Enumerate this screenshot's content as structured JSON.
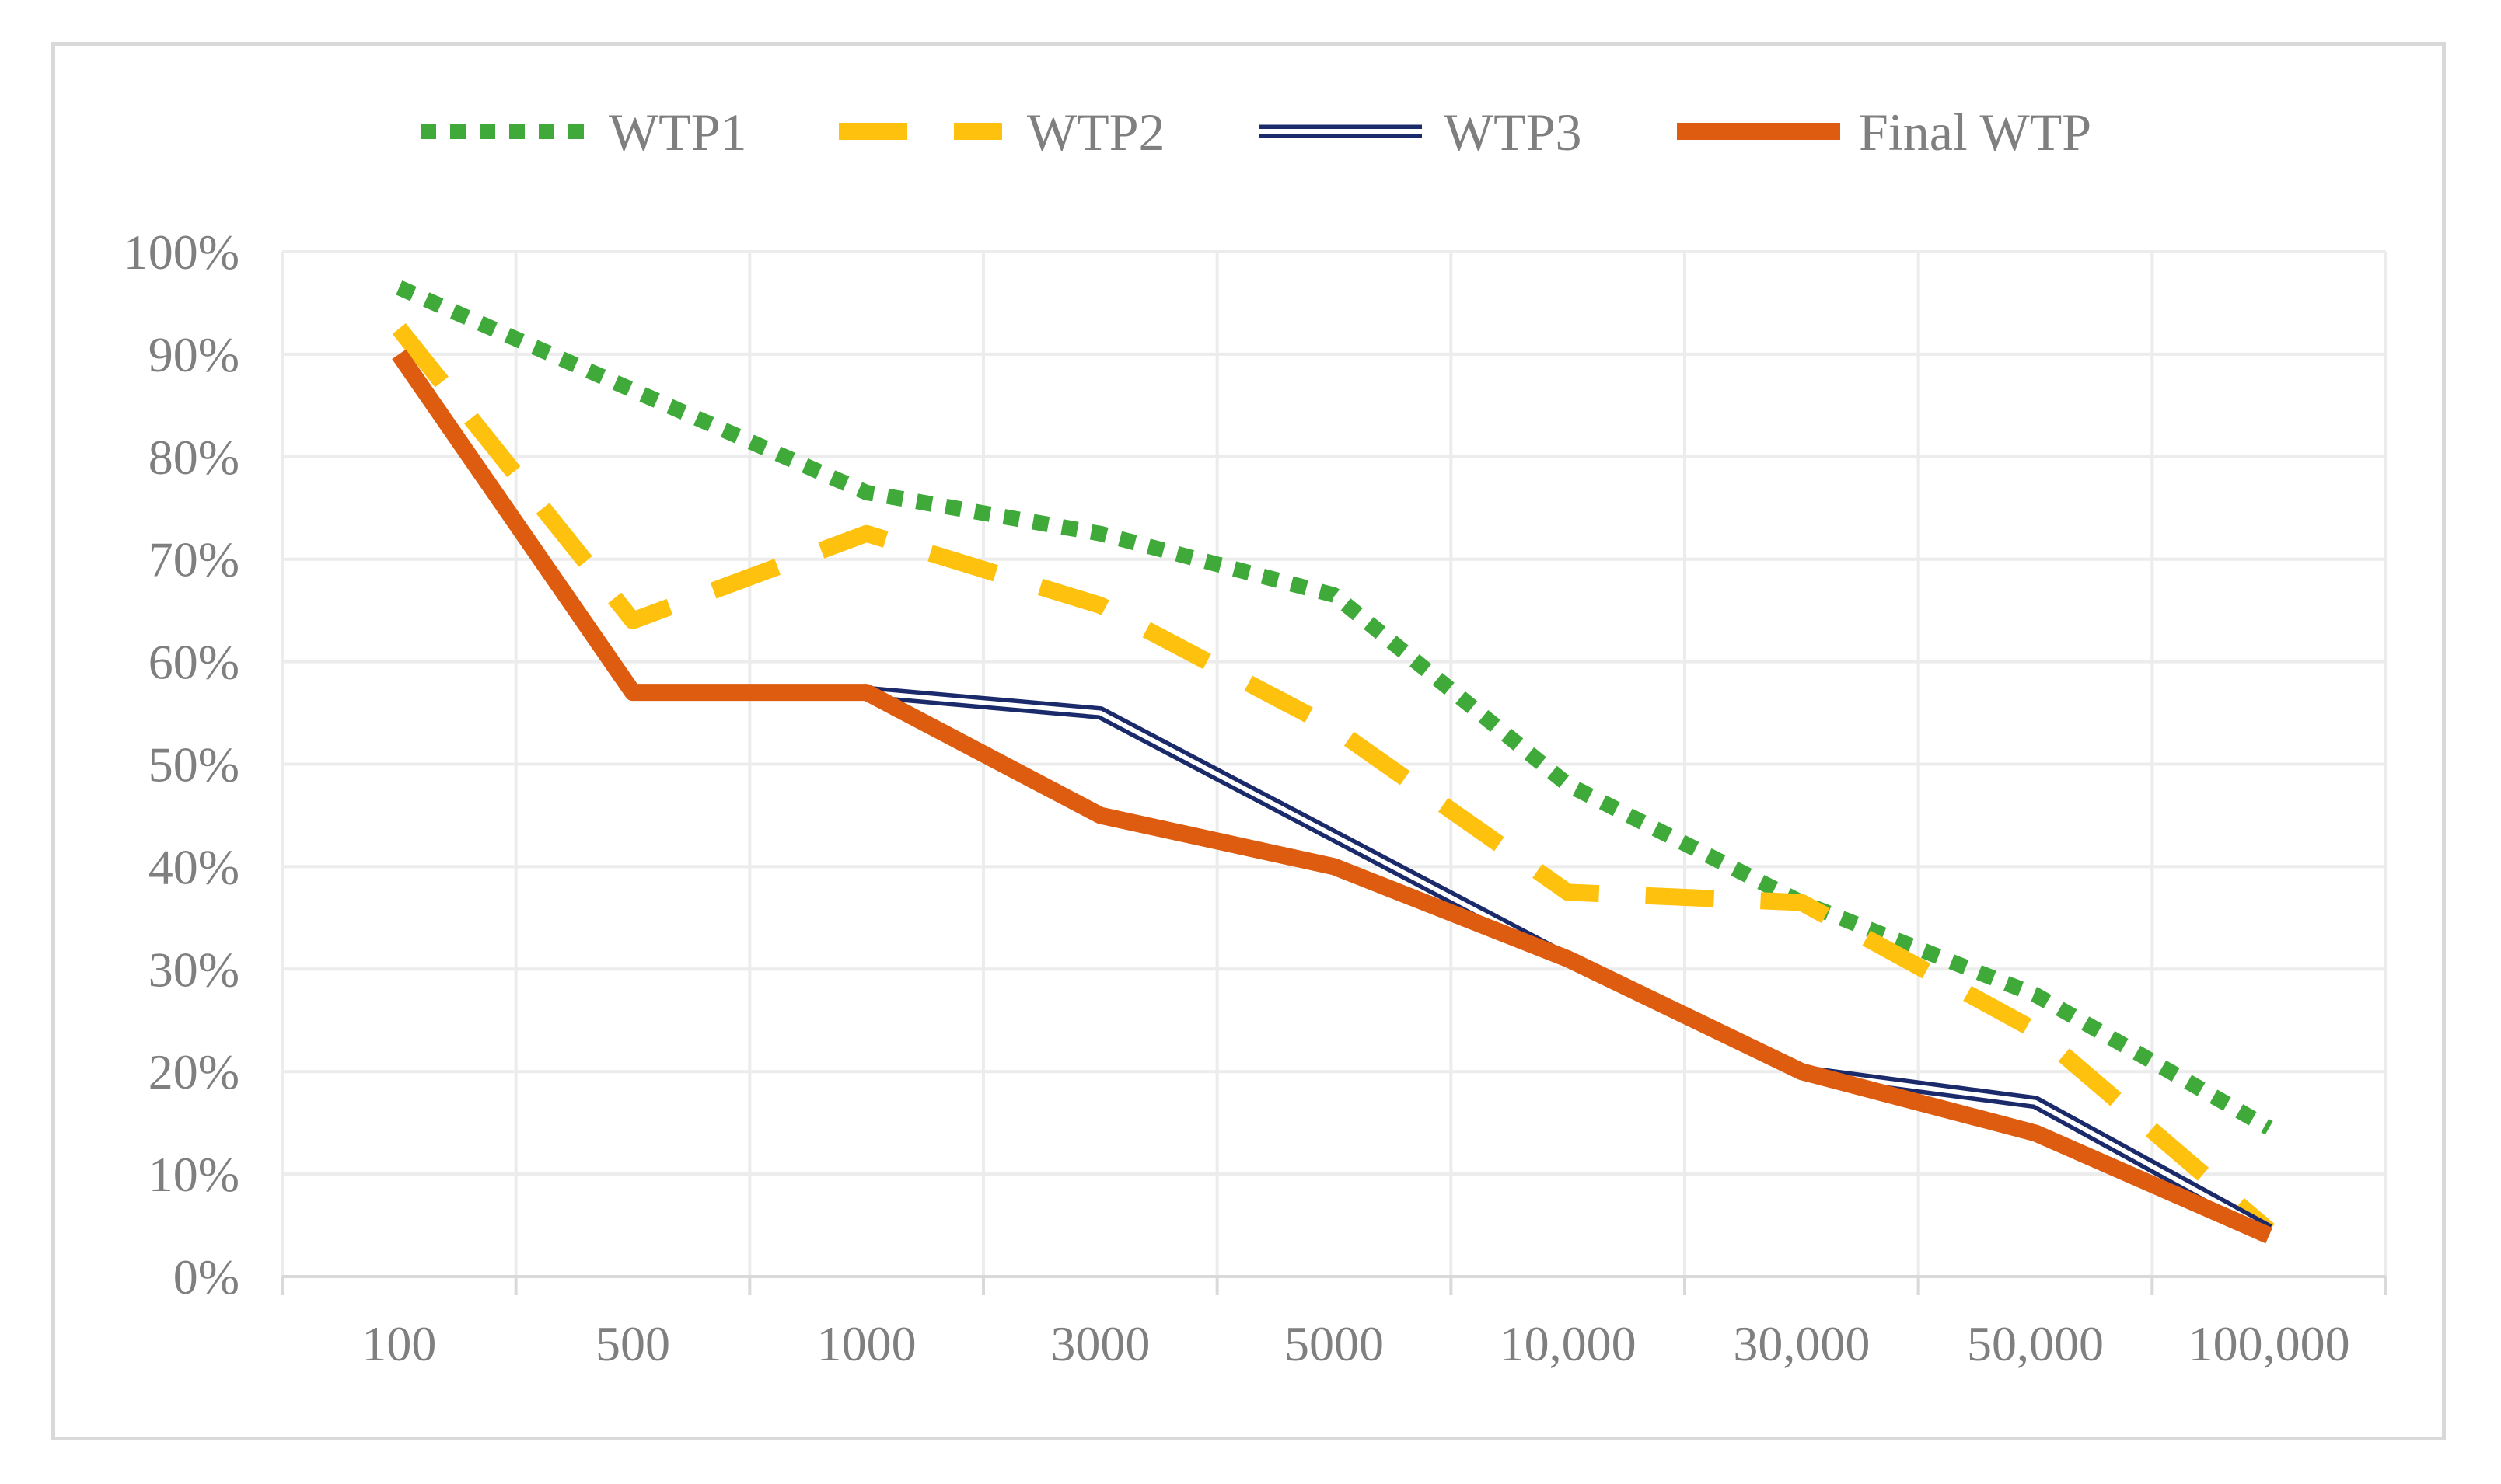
{
  "chart_data": {
    "type": "line",
    "title": "",
    "xlabel": "",
    "ylabel": "",
    "categories": [
      "100",
      "500",
      "1000",
      "3000",
      "5000",
      "10,000",
      "30,000",
      "50,000",
      "100,000"
    ],
    "ylim": [
      0,
      100
    ],
    "y_ticks": [
      0,
      10,
      20,
      30,
      40,
      50,
      60,
      70,
      80,
      90,
      100
    ],
    "y_tick_labels": [
      "0%",
      "10%",
      "20%",
      "30%",
      "40%",
      "50%",
      "60%",
      "70%",
      "80%",
      "90%",
      "100%"
    ],
    "grid": true,
    "legend_position": "top",
    "series": [
      {
        "name": "WTP1",
        "style": "dotted",
        "color": "#3faa3a",
        "values": [
          96.5,
          86.5,
          76.5,
          72.5,
          66.5,
          48,
          36.5,
          27.5,
          14.5
        ]
      },
      {
        "name": "WTP2",
        "style": "dashed",
        "color": "#fdc10e",
        "values": [
          92.5,
          64,
          72.5,
          65.5,
          53.5,
          37.5,
          36.5,
          24,
          4.5
        ]
      },
      {
        "name": "WTP3",
        "style": "double",
        "color": "#1b2a6b",
        "values": [
          90,
          57,
          57,
          55,
          43,
          31,
          20,
          17,
          4.5
        ]
      },
      {
        "name": "Final WTP",
        "style": "solid",
        "color": "#de5c0f",
        "values": [
          90,
          57,
          57,
          45,
          40,
          31,
          20,
          14,
          4
        ]
      }
    ]
  }
}
